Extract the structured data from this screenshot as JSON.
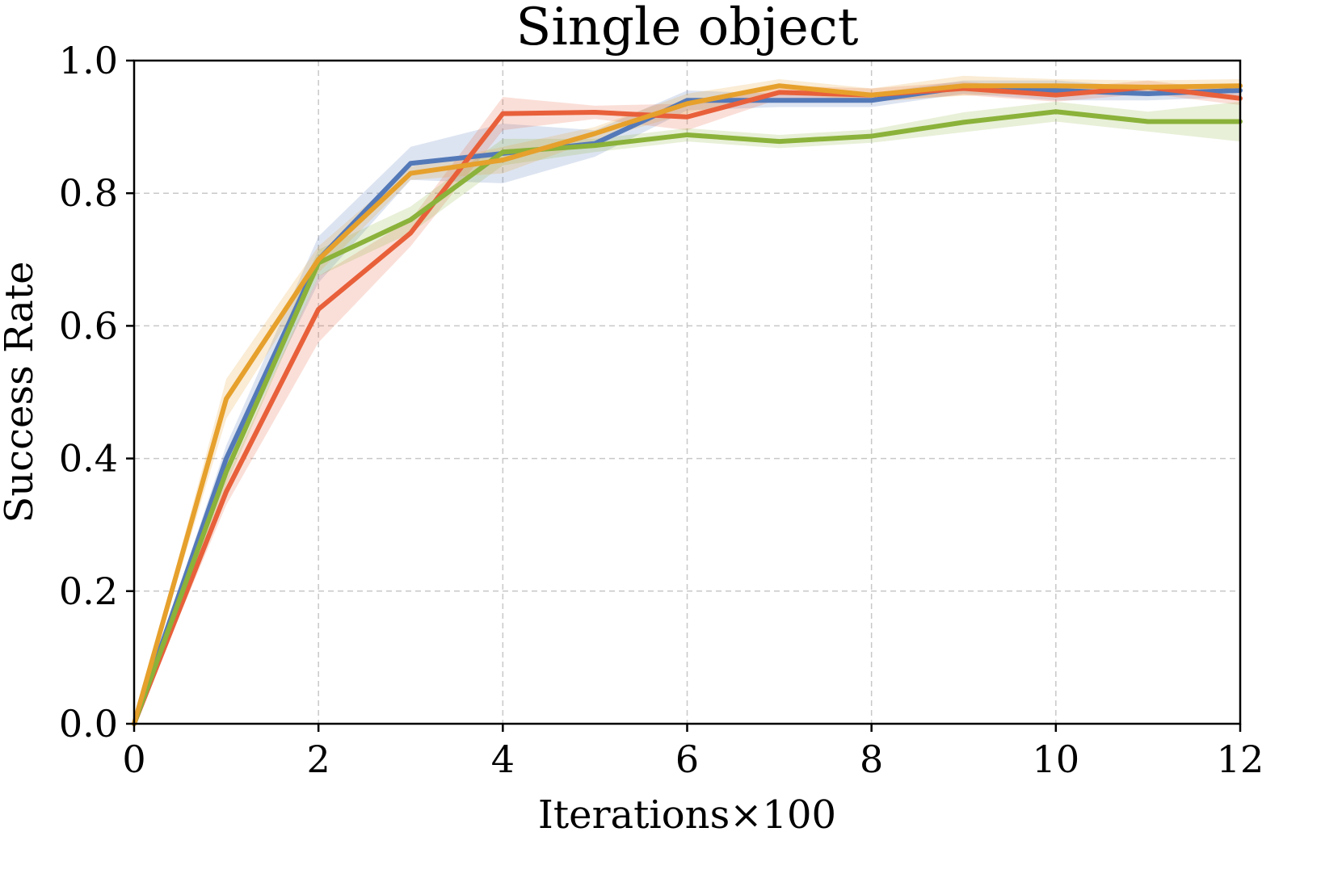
{
  "chart_data": {
    "type": "line",
    "title": "Single object",
    "xlabel": "Iterations×100",
    "ylabel": "Success Rate",
    "xlim": [
      0,
      12
    ],
    "ylim": [
      0.0,
      1.0
    ],
    "xticks": [
      0,
      2,
      4,
      6,
      8,
      10,
      12
    ],
    "xtick_labels": [
      "0",
      "2",
      "4",
      "6",
      "8",
      "10",
      "12"
    ],
    "yticks": [
      0.0,
      0.2,
      0.4,
      0.6,
      0.8,
      1.0
    ],
    "ytick_labels": [
      "0.0",
      "0.2",
      "0.4",
      "0.6",
      "0.8",
      "1.0"
    ],
    "grid": true,
    "x": [
      0,
      1,
      2,
      3,
      4,
      5,
      6,
      7,
      8,
      9,
      10,
      11,
      12
    ],
    "series": [
      {
        "color": "#5479b8",
        "values": [
          0.0,
          0.4,
          0.7,
          0.845,
          0.86,
          0.875,
          0.94,
          0.94,
          0.94,
          0.96,
          0.955,
          0.95,
          0.955
        ],
        "band": [
          0.0,
          0.02,
          0.035,
          0.025,
          0.045,
          0.02,
          0.015,
          0.01,
          0.01,
          0.01,
          0.015,
          0.01,
          0.01
        ]
      },
      {
        "color": "#e8603a",
        "values": [
          0.0,
          0.35,
          0.625,
          0.74,
          0.92,
          0.922,
          0.915,
          0.952,
          0.948,
          0.958,
          0.948,
          0.96,
          0.943
        ],
        "band": [
          0.0,
          0.02,
          0.05,
          0.02,
          0.025,
          0.01,
          0.02,
          0.01,
          0.01,
          0.01,
          0.01,
          0.01,
          0.01
        ]
      },
      {
        "color": "#8bb23a",
        "values": [
          0.0,
          0.38,
          0.695,
          0.76,
          0.862,
          0.872,
          0.888,
          0.878,
          0.886,
          0.907,
          0.923,
          0.908,
          0.908
        ],
        "band": [
          0.0,
          0.02,
          0.02,
          0.02,
          0.02,
          0.01,
          0.01,
          0.01,
          0.01,
          0.015,
          0.015,
          0.015,
          0.03
        ]
      },
      {
        "color": "#e6a02c",
        "values": [
          0.0,
          0.49,
          0.7,
          0.83,
          0.85,
          0.89,
          0.935,
          0.962,
          0.948,
          0.962,
          0.962,
          0.96,
          0.962
        ],
        "band": [
          0.0,
          0.03,
          0.02,
          0.01,
          0.02,
          0.01,
          0.015,
          0.01,
          0.01,
          0.015,
          0.01,
          0.01,
          0.01
        ]
      }
    ]
  }
}
